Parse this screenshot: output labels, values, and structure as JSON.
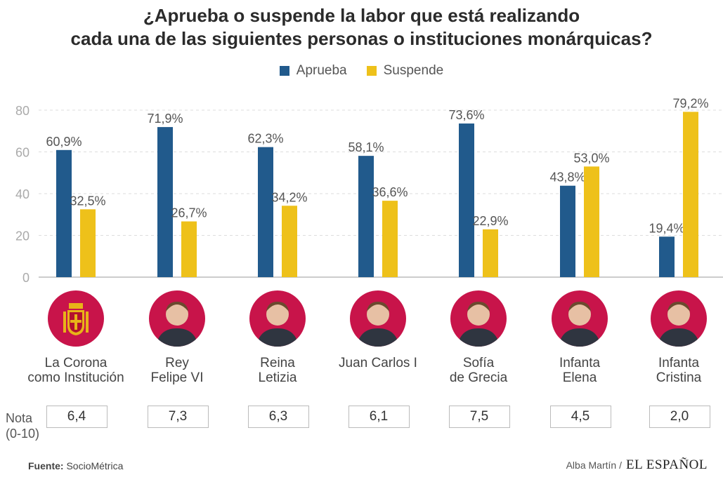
{
  "header": {
    "title_line1": "¿Aprueba o suspende la labor que está realizando",
    "title_line2": "cada una de las siguientes personas o instituciones monárquicas?"
  },
  "legend": {
    "aprueba": "Aprueba",
    "suspende": "Suspende"
  },
  "colors": {
    "aprueba": "#215a8c",
    "suspende": "#eec11a",
    "portrait_bg": "#c8144a"
  },
  "chart_data": {
    "type": "bar",
    "title": "¿Aprueba o suspende la labor que está realizando cada una de las siguientes personas o instituciones monárquicas?",
    "categories": [
      "La Corona como Institución",
      "Rey Felipe VI",
      "Reina Letizia",
      "Juan Carlos I",
      "Sofía de Grecia",
      "Infanta Elena",
      "Infanta Cristina"
    ],
    "series": [
      {
        "name": "Aprueba",
        "values": [
          60.9,
          71.9,
          62.3,
          58.1,
          73.6,
          43.8,
          19.4
        ],
        "labels": [
          "60,9%",
          "71,9%",
          "62,3%",
          "58,1%",
          "73,6%",
          "43,8%",
          "19,4%"
        ]
      },
      {
        "name": "Suspende",
        "values": [
          32.5,
          26.7,
          34.2,
          36.6,
          22.9,
          53.0,
          79.2
        ],
        "labels": [
          "32,5%",
          "26,7%",
          "34,2%",
          "36,6%",
          "22,9%",
          "53,0%",
          "79,2%"
        ]
      }
    ],
    "yticks": [
      "0",
      "20",
      "40",
      "60",
      "80"
    ],
    "ylim": [
      0,
      80
    ],
    "grid": true,
    "legend_position": "top-center"
  },
  "subjects": [
    {
      "name_line1": "La Corona",
      "name_line2": "como Institución",
      "icon": "coat-of-arms-icon",
      "nota": "6,4"
    },
    {
      "name_line1": "Rey",
      "name_line2": "Felipe VI",
      "icon": "portrait-icon",
      "nota": "7,3"
    },
    {
      "name_line1": "Reina",
      "name_line2": "Letizia",
      "icon": "portrait-icon",
      "nota": "6,3"
    },
    {
      "name_line1": "Juan Carlos I",
      "name_line2": "",
      "icon": "portrait-icon",
      "nota": "6,1"
    },
    {
      "name_line1": "Sofía",
      "name_line2": "de Grecia",
      "icon": "portrait-icon",
      "nota": "7,5"
    },
    {
      "name_line1": "Infanta",
      "name_line2": "Elena",
      "icon": "portrait-icon",
      "nota": "4,5"
    },
    {
      "name_line1": "Infanta",
      "name_line2": "Cristina",
      "icon": "portrait-icon",
      "nota": "2,0"
    }
  ],
  "nota": {
    "label_line1": "Nota",
    "label_line2": "(0-10)"
  },
  "footer": {
    "source_label": "Fuente:",
    "source_value": "SocioMétrica",
    "author": "Alba Martín /",
    "brand": "EL ESPAÑOL"
  }
}
